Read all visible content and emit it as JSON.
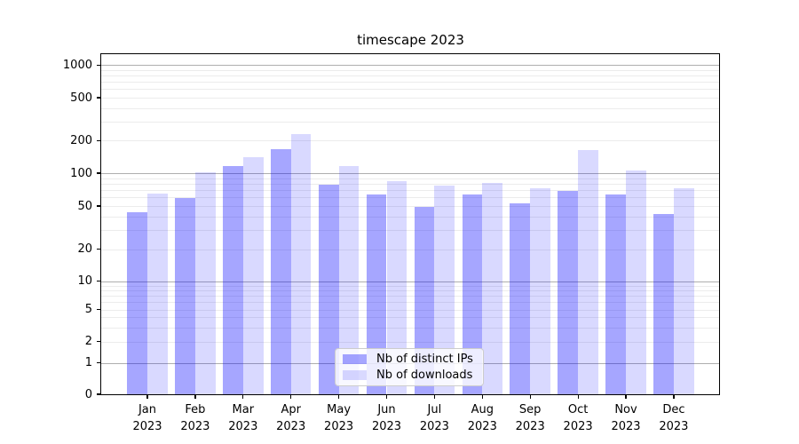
{
  "chart_data": {
    "type": "bar",
    "title": "timescape 2023",
    "categories": [
      "Jan 2023",
      "Feb 2023",
      "Mar 2023",
      "Apr 2023",
      "May 2023",
      "Jun 2023",
      "Jul 2023",
      "Aug 2023",
      "Sep 2023",
      "Oct 2023",
      "Nov 2023",
      "Dec 2023"
    ],
    "series": [
      {
        "name": "Nb of distinct IPs",
        "color": "rgba(0,0,255,0.35)",
        "values": [
          44,
          59,
          116,
          168,
          78,
          64,
          49,
          64,
          53,
          69,
          64,
          42
        ]
      },
      {
        "name": "Nb of downloads",
        "color": "rgba(0,0,255,0.15)",
        "values": [
          65,
          101,
          141,
          232,
          116,
          85,
          77,
          82,
          73,
          164,
          106,
          73
        ]
      }
    ],
    "xlabel": "",
    "ylabel": "",
    "yscale": "symlog",
    "yticks": [
      0,
      1,
      2,
      5,
      10,
      20,
      50,
      100,
      200,
      500,
      1000
    ],
    "ylim": [
      0,
      1300
    ],
    "grid": "both",
    "legend_position": "lower center"
  },
  "colors": {
    "grid_major": "#aeaeae",
    "grid_minor": "#ececec",
    "axis": "#000000",
    "background": "#ffffff",
    "text": "#000000"
  }
}
